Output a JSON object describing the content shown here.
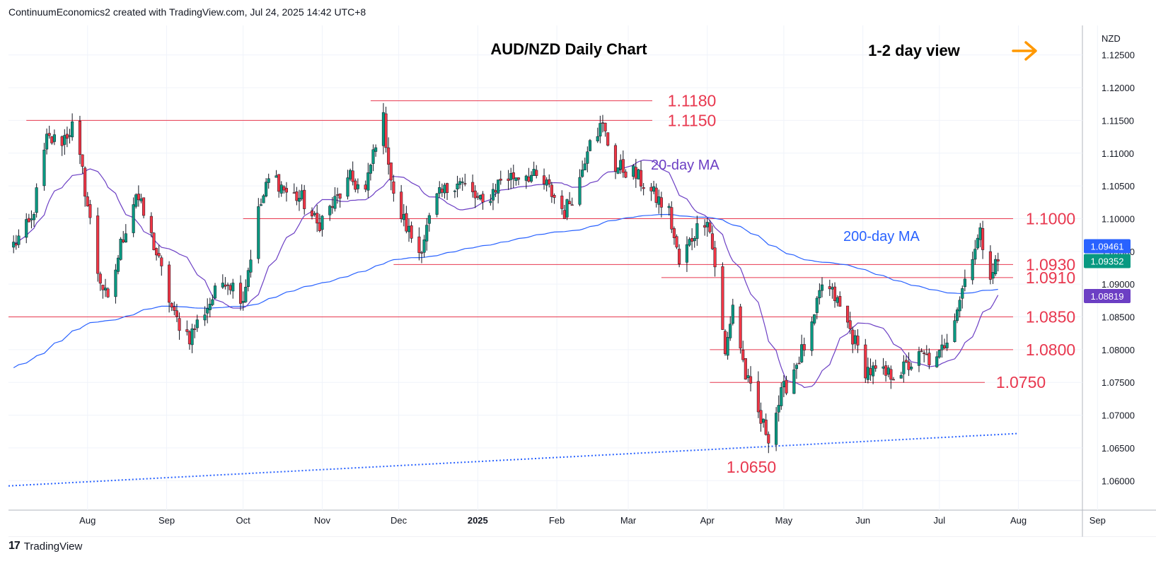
{
  "header": {
    "attribution": "ContinuumEconomics2 created with TradingView.com, Jul 24, 2025 14:42 UTC+8"
  },
  "footer": {
    "brand": "TradingView"
  },
  "chart_data": {
    "type": "candlestick",
    "title": "AUD/NZD Daily Chart",
    "view_label": "1-2 day view",
    "view_arrow": "right",
    "currency": "NZD",
    "y_axis": {
      "ylim": [
        1.0555,
        1.1295
      ],
      "ticks": [
        "1.12500",
        "1.12000",
        "1.11500",
        "1.11000",
        "1.10500",
        "1.10000",
        "1.09500",
        "1.09000",
        "1.08500",
        "1.08000",
        "1.07500",
        "1.07000",
        "1.06500",
        "1.06000"
      ]
    },
    "x_axis": {
      "labels": [
        "Aug",
        "Sep",
        "Oct",
        "Nov",
        "Dec",
        "2025",
        "Feb",
        "Mar",
        "Apr",
        "May",
        "Jun",
        "Jul",
        "Aug",
        "Sep"
      ]
    },
    "price_tags": {
      "current": "1.09352",
      "ma20": "1.08819",
      "ma200": "1.09461"
    },
    "colors": {
      "up": "#089981",
      "down": "#f23645",
      "ma20": "#6c3fc4",
      "ma200": "#2962ff",
      "levels": "#e8384f",
      "arrow": "#ff9800",
      "trendline": "#2962ff"
    },
    "levels": [
      {
        "label": "1.1180",
        "value": 1.118,
        "x_start": "2024-11-20"
      },
      {
        "label": "1.1150",
        "value": 1.115,
        "x_start": "2024-07-08"
      },
      {
        "label": "1.1000",
        "value": 1.1,
        "x_start": "2024-10-01"
      },
      {
        "label": "1.0930",
        "value": 1.093,
        "x_start": "2024-11-29"
      },
      {
        "label": "1.0910",
        "value": 1.091,
        "x_start": "2025-03-14"
      },
      {
        "label": "1.0850",
        "value": 1.085,
        "x_start": "2024-07-01"
      },
      {
        "label": "1.0800",
        "value": 1.08,
        "x_start": "2025-04-02"
      },
      {
        "label": "1.0750",
        "value": 1.075,
        "x_start": "2025-04-02"
      },
      {
        "label": "1.0650",
        "value": 1.065,
        "x_start": null
      }
    ],
    "annotations": {
      "ma20_label": "20-day MA",
      "ma200_label": "200-day MA"
    },
    "trendline": [
      {
        "date": "2024-07-01",
        "value": 1.0592
      },
      {
        "date": "2025-08-01",
        "value": 1.0672
      }
    ],
    "anchors": [
      {
        "date": "2024-07-03",
        "value": 1.096
      },
      {
        "date": "2024-07-10",
        "value": 1.0995
      },
      {
        "date": "2024-07-16",
        "value": 1.112
      },
      {
        "date": "2024-07-22",
        "value": 1.112
      },
      {
        "date": "2024-07-26",
        "value": 1.114
      },
      {
        "date": "2024-07-30",
        "value": 1.107
      },
      {
        "date": "2024-08-05",
        "value": 1.092
      },
      {
        "date": "2024-08-09",
        "value": 1.087
      },
      {
        "date": "2024-08-14",
        "value": 1.096
      },
      {
        "date": "2024-08-20",
        "value": 1.104
      },
      {
        "date": "2024-08-27",
        "value": 1.096
      },
      {
        "date": "2024-09-04",
        "value": 1.085
      },
      {
        "date": "2024-09-10",
        "value": 1.082
      },
      {
        "date": "2024-09-16",
        "value": 1.086
      },
      {
        "date": "2024-09-24",
        "value": 1.091
      },
      {
        "date": "2024-10-01",
        "value": 1.088
      },
      {
        "date": "2024-10-07",
        "value": 1.101
      },
      {
        "date": "2024-10-12",
        "value": 1.107
      },
      {
        "date": "2024-10-18",
        "value": 1.104
      },
      {
        "date": "2024-10-24",
        "value": 1.103
      },
      {
        "date": "2024-10-30",
        "value": 1.099
      },
      {
        "date": "2024-11-05",
        "value": 1.102
      },
      {
        "date": "2024-11-12",
        "value": 1.106
      },
      {
        "date": "2024-11-18",
        "value": 1.104
      },
      {
        "date": "2024-11-22",
        "value": 1.112
      },
      {
        "date": "2024-11-25",
        "value": 1.115
      },
      {
        "date": "2024-11-29",
        "value": 1.103
      },
      {
        "date": "2024-12-05",
        "value": 1.098
      },
      {
        "date": "2024-12-09",
        "value": 1.095
      },
      {
        "date": "2024-12-16",
        "value": 1.103
      },
      {
        "date": "2024-12-24",
        "value": 1.106
      },
      {
        "date": "2025-01-03",
        "value": 1.102
      },
      {
        "date": "2025-01-10",
        "value": 1.106
      },
      {
        "date": "2025-01-20",
        "value": 1.107
      },
      {
        "date": "2025-01-28",
        "value": 1.105
      },
      {
        "date": "2025-02-04",
        "value": 1.101
      },
      {
        "date": "2025-02-10",
        "value": 1.106
      },
      {
        "date": "2025-02-14",
        "value": 1.113
      },
      {
        "date": "2025-02-19",
        "value": 1.114
      },
      {
        "date": "2025-02-24",
        "value": 1.108
      },
      {
        "date": "2025-03-03",
        "value": 1.107
      },
      {
        "date": "2025-03-10",
        "value": 1.104
      },
      {
        "date": "2025-03-17",
        "value": 1.101
      },
      {
        "date": "2025-03-21",
        "value": 1.093
      },
      {
        "date": "2025-03-27",
        "value": 1.098
      },
      {
        "date": "2025-04-01",
        "value": 1.1005
      },
      {
        "date": "2025-04-04",
        "value": 1.093
      },
      {
        "date": "2025-04-08",
        "value": 1.079
      },
      {
        "date": "2025-04-11",
        "value": 1.087
      },
      {
        "date": "2025-04-16",
        "value": 1.076
      },
      {
        "date": "2025-04-22",
        "value": 1.069
      },
      {
        "date": "2025-04-25",
        "value": 1.067
      },
      {
        "date": "2025-04-30",
        "value": 1.073
      },
      {
        "date": "2025-05-06",
        "value": 1.078
      },
      {
        "date": "2025-05-12",
        "value": 1.083
      },
      {
        "date": "2025-05-16",
        "value": 1.09
      },
      {
        "date": "2025-05-21",
        "value": 1.088
      },
      {
        "date": "2025-05-27",
        "value": 1.083
      },
      {
        "date": "2025-06-02",
        "value": 1.077
      },
      {
        "date": "2025-06-10",
        "value": 1.076
      },
      {
        "date": "2025-06-17",
        "value": 1.077
      },
      {
        "date": "2025-06-24",
        "value": 1.079
      },
      {
        "date": "2025-06-30",
        "value": 1.078
      },
      {
        "date": "2025-07-04",
        "value": 1.082
      },
      {
        "date": "2025-07-09",
        "value": 1.088
      },
      {
        "date": "2025-07-14",
        "value": 1.095
      },
      {
        "date": "2025-07-17",
        "value": 1.0975
      },
      {
        "date": "2025-07-21",
        "value": 1.092
      },
      {
        "date": "2025-07-24",
        "value": 1.0935
      }
    ]
  }
}
